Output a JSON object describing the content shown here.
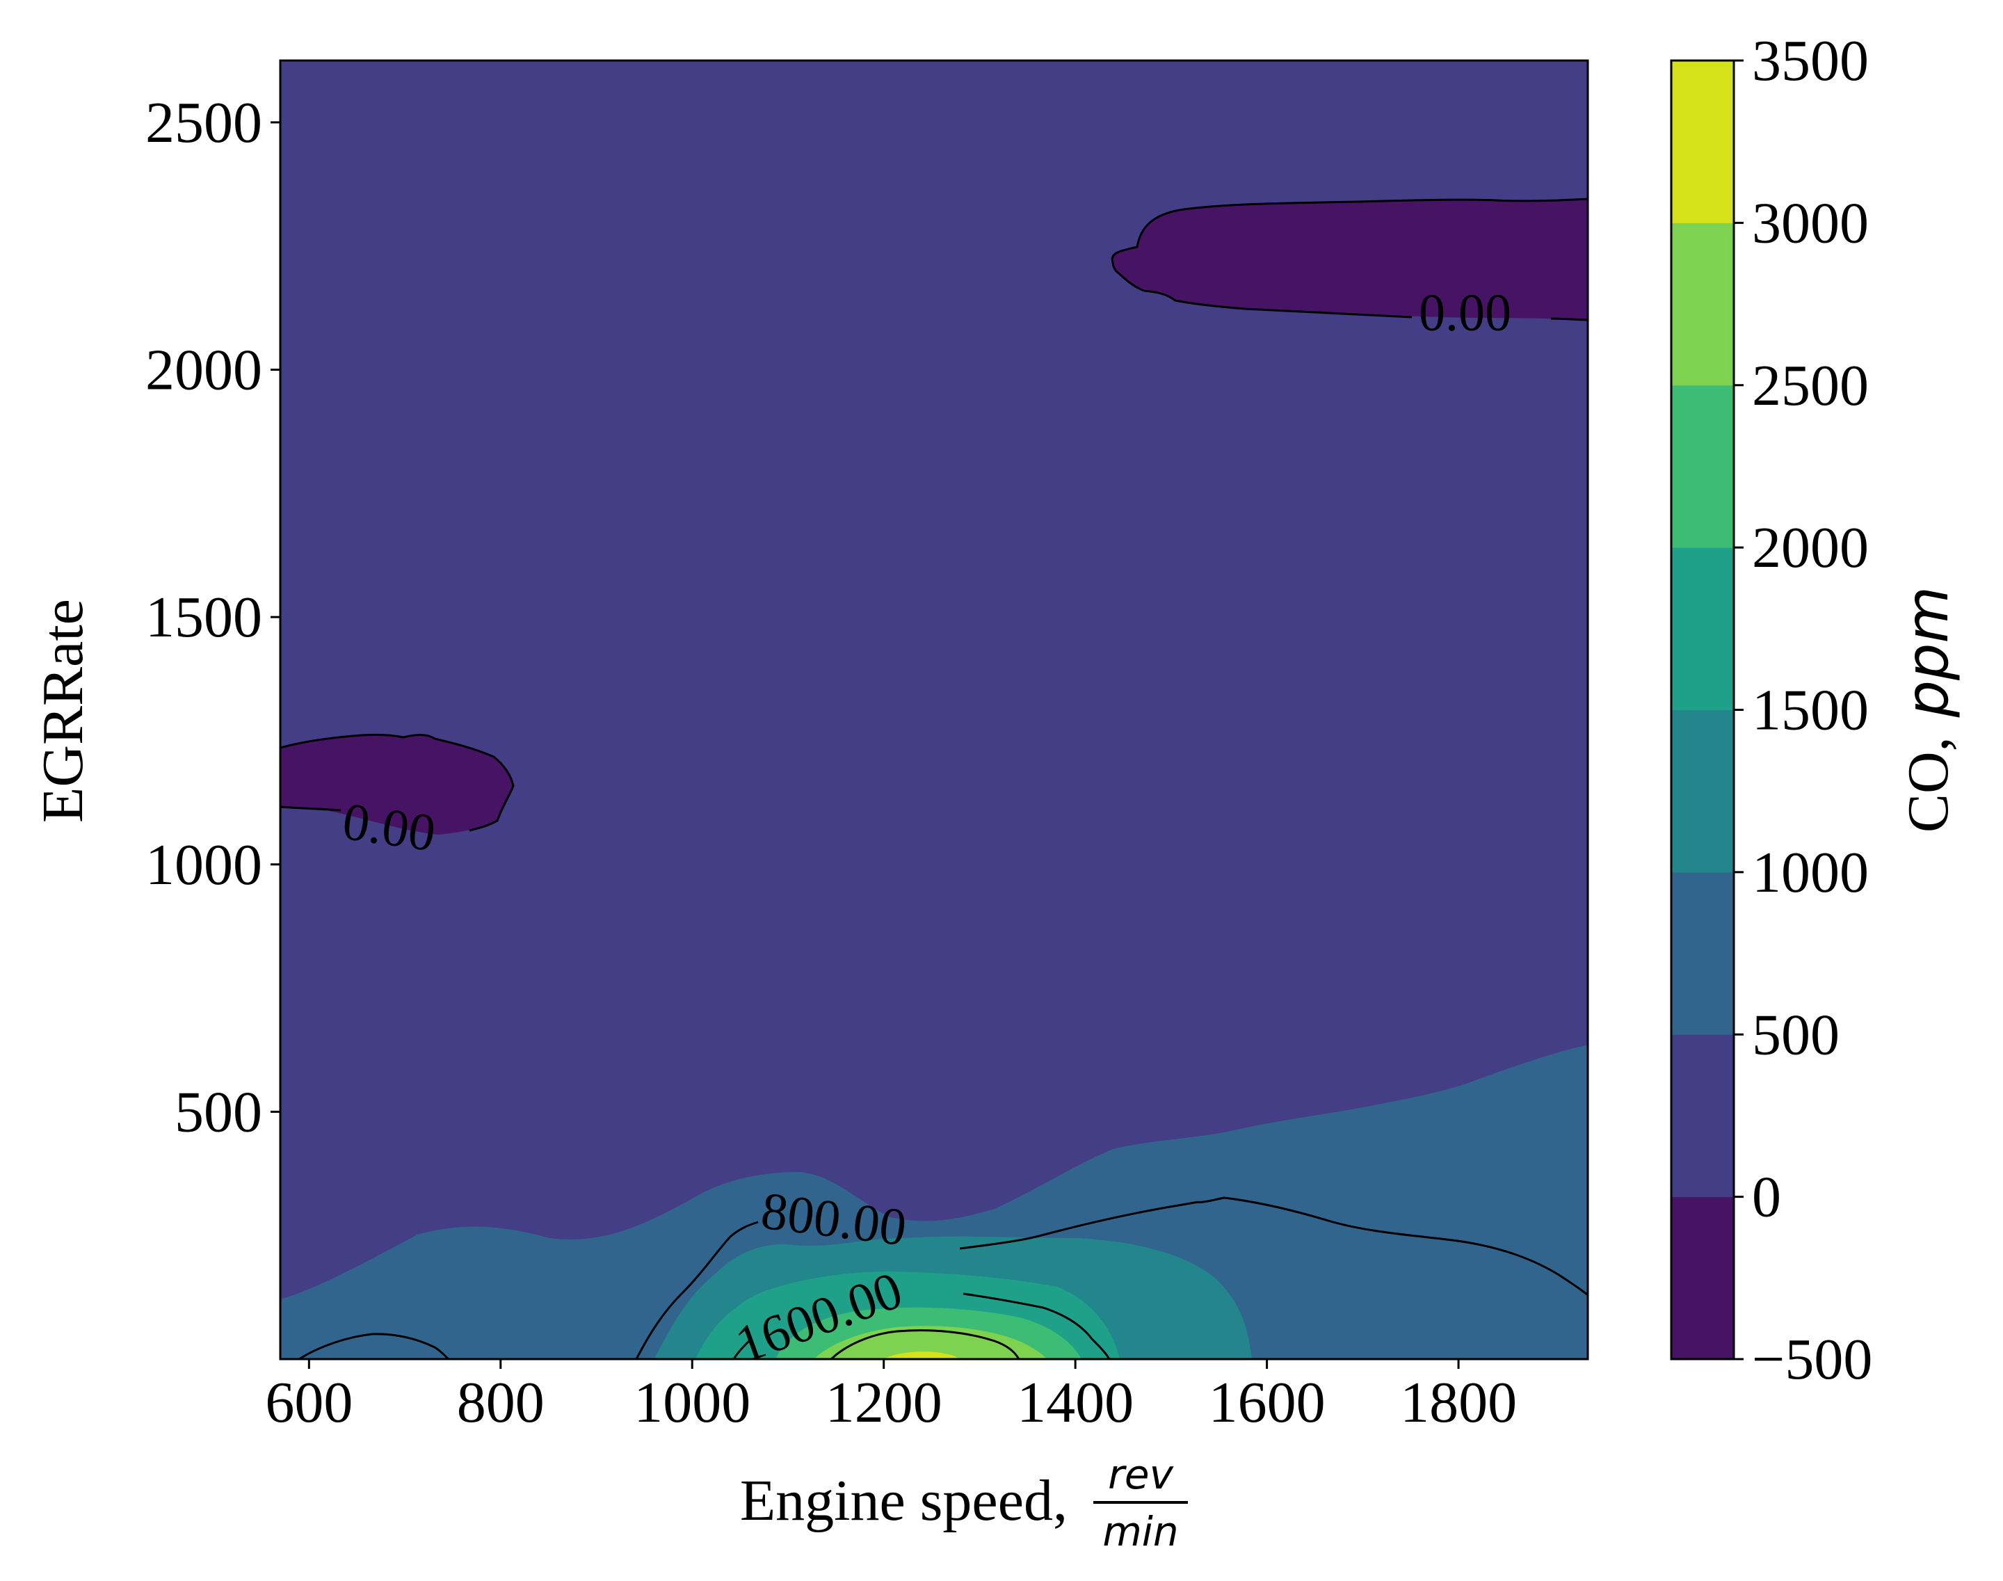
{
  "chart_data": {
    "type": "contourf",
    "x_label_text": "Engine speed,",
    "x_label_unit_num": "rev",
    "x_label_unit_den": "min",
    "y_label": "EGRRate",
    "colorbar_label_main": "CO,",
    "colorbar_label_unit": "ppm",
    "xlim": [
      570,
      1935
    ],
    "ylim": [
      0,
      2625
    ],
    "x_ticks": [
      600,
      800,
      1000,
      1200,
      1400,
      1600,
      1800
    ],
    "x_tick_labels": [
      "600",
      "800",
      "1000",
      "1200",
      "1400",
      "1600",
      "1800"
    ],
    "y_ticks": [
      500,
      1000,
      1500,
      2000,
      2500
    ],
    "y_tick_labels": [
      "500",
      "1000",
      "1500",
      "2000",
      "2500"
    ],
    "levels": [
      -500,
      0,
      500,
      1000,
      1500,
      2000,
      2500,
      3000,
      3500
    ],
    "level_labels": [
      "−500",
      "0",
      "500",
      "1000",
      "1500",
      "2000",
      "2500",
      "3000",
      "3500"
    ],
    "level_colors": [
      "#471465",
      "#433e85",
      "#32658e",
      "#23868d",
      "#1fa088",
      "#3cbc74",
      "#7dd250",
      "#d5e21a"
    ],
    "contour_line_labels": [
      "0.00",
      "0.00",
      "800.00",
      "1600.00"
    ],
    "regions": [
      {
        "name": "below-zero-upper-right",
        "level_band": "-500 to 0",
        "x_range": [
          1450,
          1935
        ],
        "y_range": [
          2100,
          2350
        ]
      },
      {
        "name": "below-zero-left",
        "level_band": "-500 to 0",
        "x_range": [
          570,
          810
        ],
        "y_range": [
          1070,
          1280
        ]
      },
      {
        "name": "peak",
        "level_band": "3000 to 3500",
        "x_center": 1255,
        "y_center": 0
      }
    ],
    "grid": false,
    "colorbar": true
  }
}
